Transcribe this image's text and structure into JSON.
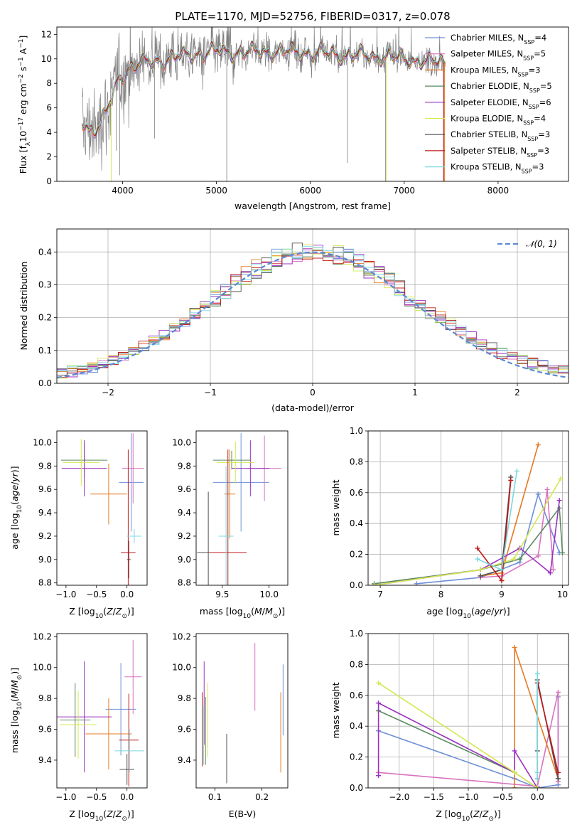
{
  "title": "PLATE=1170, MJD=52756, FIBERID=0317, z=0.078",
  "colors": {
    "Chabrier MILES": "#6c8fd8",
    "Salpeter MILES": "#d872c0",
    "Kroupa MILES": "#e87820",
    "Chabrier ELODIE": "#5a8a60",
    "Salpeter ELODIE": "#9b30c0",
    "Kroupa ELODIE": "#d4e850",
    "Chabrier STELIB": "#505050",
    "Salpeter STELIB": "#c01818",
    "Kroupa STELIB": "#7ad8e0",
    "data": "#808080"
  },
  "chart_data": [
    {
      "id": "spectrum",
      "type": "line",
      "xlabel": "wavelength [Angstrom, rest frame]",
      "ylabel": "Flux [f_λ 10^-17 erg cm^-2 s^-1 A^-1]",
      "xlim": [
        3300,
        8750
      ],
      "ylim": [
        0,
        12.6
      ],
      "xticks": [
        4000,
        5000,
        6000,
        7000,
        8000
      ],
      "yticks": [
        0,
        2,
        4,
        6,
        8,
        10,
        12
      ],
      "legend_position": "right",
      "legend": [
        {
          "model": "Chabrier MILES",
          "label": "Chabrier MILES, N",
          "sub": "SSP",
          "suffix": "=4"
        },
        {
          "model": "Salpeter MILES",
          "label": "Salpeter MILES, N",
          "sub": "SSP",
          "suffix": "=5"
        },
        {
          "model": "Kroupa MILES",
          "label": "Kroupa MILES, N",
          "sub": "SSP",
          "suffix": "=3"
        },
        {
          "model": "Chabrier ELODIE",
          "label": "Chabrier ELODIE, N",
          "sub": "SSP",
          "suffix": "=5"
        },
        {
          "model": "Salpeter ELODIE",
          "label": "Salpeter ELODIE, N",
          "sub": "SSP",
          "suffix": "=6"
        },
        {
          "model": "Kroupa ELODIE",
          "label": "Kroupa ELODIE, N",
          "sub": "SSP",
          "suffix": "=4"
        },
        {
          "model": "Chabrier STELIB",
          "label": "Chabrier STELIB, N",
          "sub": "SSP",
          "suffix": "=3"
        },
        {
          "model": "Salpeter STELIB",
          "label": "Salpeter STELIB, N",
          "sub": "SSP",
          "suffix": "=3"
        },
        {
          "model": "Kroupa STELIB",
          "label": "Kroupa STELIB, N",
          "sub": "SSP",
          "suffix": "=3"
        }
      ],
      "continuum": [
        [
          3570,
          5.0
        ],
        [
          3650,
          4.2
        ],
        [
          3750,
          4.5
        ],
        [
          3850,
          6.0
        ],
        [
          3950,
          8.2
        ],
        [
          4050,
          9.2
        ],
        [
          4200,
          9.6
        ],
        [
          4400,
          9.9
        ],
        [
          4700,
          10.3
        ],
        [
          5000,
          10.6
        ],
        [
          5300,
          10.5
        ],
        [
          5600,
          10.6
        ],
        [
          6000,
          10.5
        ],
        [
          6400,
          10.3
        ],
        [
          6800,
          10.2
        ],
        [
          7200,
          9.8
        ],
        [
          7440,
          9.7
        ]
      ],
      "absorption_lines": [
        [
          3934,
          2.5
        ],
        [
          3969,
          0.5
        ],
        [
          4340,
          3.5
        ],
        [
          5110,
          0.0
        ],
        [
          6396,
          1.5
        ],
        [
          6800,
          0.0
        ],
        [
          7420,
          0.0
        ]
      ]
    },
    {
      "id": "residuals",
      "type": "histogram",
      "xlabel": "(data-model)/error",
      "ylabel": "Normed distribution",
      "xlim": [
        -2.5,
        2.5
      ],
      "ylim": [
        0,
        0.47
      ],
      "xticks": [
        -2,
        -1,
        0,
        1,
        2
      ],
      "yticks": [
        0.0,
        0.1,
        0.2,
        0.3,
        0.4
      ],
      "bin_width": 0.1,
      "grid": true,
      "legend_position": "top-right",
      "reference_label": "𝒩(0, 1)"
    },
    {
      "id": "age-vs-Z",
      "type": "scatter",
      "xlabel": "Z [log10(Z/Z⊙)]",
      "ylabel": "age [log10(age/yr)]",
      "xlim": [
        -1.15,
        0.33
      ],
      "ylim": [
        8.78,
        10.1
      ],
      "xticks": [
        -1.0,
        -0.5,
        0.0
      ],
      "yticks": [
        8.8,
        9.0,
        9.2,
        9.4,
        9.6,
        9.8,
        10.0
      ],
      "points": [
        {
          "model": "Chabrier MILES",
          "x": 0.07,
          "y": 9.66,
          "xerr": 0.2,
          "yerr": 0.42
        },
        {
          "model": "Salpeter MILES",
          "x": 0.1,
          "y": 9.78,
          "xerr": 0.18,
          "yerr": 0.3
        },
        {
          "model": "Kroupa MILES",
          "x": -0.3,
          "y": 9.56,
          "xerr": 0.3,
          "yerr": 0.26
        },
        {
          "model": "Chabrier ELODIE",
          "x": -0.7,
          "y": 9.85,
          "xerr": 0.38,
          "yerr": 0.15
        },
        {
          "model": "Salpeter ELODIE",
          "x": -0.7,
          "y": 9.78,
          "xerr": 0.37,
          "yerr": 0.24
        },
        {
          "model": "Kroupa ELODIE",
          "x": -0.75,
          "y": 9.83,
          "xerr": 0.3,
          "yerr": 0.2
        },
        {
          "model": "Chabrier STELIB",
          "x": 0.03,
          "y": 9.0,
          "xerr": 0.03,
          "yerr": 0.16
        },
        {
          "model": "Salpeter STELIB",
          "x": 0.02,
          "y": 9.06,
          "xerr": 0.12,
          "yerr": 0.88
        },
        {
          "model": "Kroupa STELIB",
          "x": 0.12,
          "y": 9.2,
          "xerr": 0.12,
          "yerr": 0.06
        }
      ]
    },
    {
      "id": "age-vs-mass",
      "type": "scatter",
      "xlabel": "mass [log10(M/M⊙)]",
      "ylabel": "",
      "xlim": [
        9.22,
        10.2
      ],
      "ylim": [
        8.78,
        10.1
      ],
      "xticks": [
        9.5,
        10.0
      ],
      "yticks": [
        8.8,
        9.0,
        9.2,
        9.4,
        9.6,
        9.8,
        10.0
      ],
      "points": [
        {
          "model": "Chabrier MILES",
          "x": 9.7,
          "y": 9.66,
          "xerr": 0.3,
          "yerr": 0.42
        },
        {
          "model": "Salpeter MILES",
          "x": 9.95,
          "y": 9.78,
          "xerr": 0.18,
          "yerr": 0.28
        },
        {
          "model": "Kroupa MILES",
          "x": 9.58,
          "y": 9.56,
          "xerr": 0.06,
          "yerr": 0.38
        },
        {
          "model": "Chabrier ELODIE",
          "x": 9.6,
          "y": 9.85,
          "xerr": 0.2,
          "yerr": 0.08
        },
        {
          "model": "Salpeter ELODIE",
          "x": 9.8,
          "y": 9.78,
          "xerr": 0.2,
          "yerr": 0.24
        },
        {
          "model": "Kroupa ELODIE",
          "x": 9.64,
          "y": 9.83,
          "xerr": 0.2,
          "yerr": 0.18
        },
        {
          "model": "Chabrier STELIB",
          "x": 9.35,
          "y": 9.06,
          "xerr": 0.12,
          "yerr": 0.52
        },
        {
          "model": "Salpeter STELIB",
          "x": 9.56,
          "y": 9.06,
          "xerr": 0.2,
          "yerr": 0.88
        },
        {
          "model": "Kroupa STELIB",
          "x": 9.54,
          "y": 9.2,
          "xerr": 0.08,
          "yerr": 0.6
        }
      ]
    },
    {
      "id": "weight-vs-age",
      "type": "line",
      "xlabel": "age [log10(age/yr)]",
      "ylabel": "mass weight",
      "xlim": [
        6.8,
        10.1
      ],
      "ylim": [
        0,
        1.0
      ],
      "xticks": [
        7,
        8,
        9,
        10
      ],
      "yticks": [
        0.0,
        0.2,
        0.4,
        0.6,
        0.8,
        1.0
      ],
      "grid": true,
      "series": [
        {
          "model": "Chabrier MILES",
          "x": [
            7.6,
            8.65,
            9.3,
            9.6,
            9.95
          ],
          "y": [
            0.01,
            0.05,
            0.15,
            0.59,
            0.21
          ]
        },
        {
          "model": "Salpeter MILES",
          "x": [
            8.65,
            9.0,
            9.6,
            9.75,
            9.85
          ],
          "y": [
            0.05,
            0.06,
            0.19,
            0.62,
            0.1
          ]
        },
        {
          "model": "Kroupa MILES",
          "x": [
            8.65,
            9.0,
            9.6
          ],
          "y": [
            0.06,
            0.08,
            0.91
          ]
        },
        {
          "model": "Chabrier ELODIE",
          "x": [
            6.9,
            8.65,
            9.3,
            9.95,
            10.0
          ],
          "y": [
            0.01,
            0.1,
            0.17,
            0.5,
            0.21
          ]
        },
        {
          "model": "Salpeter ELODIE",
          "x": [
            6.9,
            8.65,
            9.3,
            9.8,
            9.95
          ],
          "y": [
            0.0,
            0.1,
            0.24,
            0.08,
            0.55
          ]
        },
        {
          "model": "Kroupa ELODIE",
          "x": [
            6.9,
            8.65,
            9.2,
            9.97
          ],
          "y": [
            0.0,
            0.1,
            0.17,
            0.69
          ]
        },
        {
          "model": "Chabrier STELIB",
          "x": [
            8.65,
            9.0,
            9.15
          ],
          "y": [
            0.06,
            0.1,
            0.7
          ]
        },
        {
          "model": "Salpeter STELIB",
          "x": [
            8.6,
            9.0,
            9.15
          ],
          "y": [
            0.24,
            0.03,
            0.68
          ]
        },
        {
          "model": "Kroupa STELIB",
          "x": [
            8.6,
            9.0,
            9.25
          ],
          "y": [
            0.17,
            0.1,
            0.74
          ]
        }
      ]
    },
    {
      "id": "mass-vs-Z",
      "type": "scatter",
      "xlabel": "Z [log10(Z/Z⊙)]",
      "ylabel": "mass [log10(M/M⊙)]",
      "xlim": [
        -1.15,
        0.33
      ],
      "ylim": [
        9.22,
        10.22
      ],
      "xticks": [
        -1.0,
        -0.5,
        0.0
      ],
      "yticks": [
        9.4,
        9.6,
        9.8,
        10.0,
        10.2
      ],
      "points": [
        {
          "model": "Chabrier MILES",
          "x": -0.1,
          "y": 9.73,
          "xerr": 0.25,
          "yerr": 0.3
        },
        {
          "model": "Salpeter MILES",
          "x": 0.1,
          "y": 9.94,
          "xerr": 0.14,
          "yerr": 0.24
        },
        {
          "model": "Kroupa MILES",
          "x": -0.3,
          "y": 9.57,
          "xerr": 0.38,
          "yerr": 0.23
        },
        {
          "model": "Chabrier ELODIE",
          "x": -0.85,
          "y": 9.66,
          "xerr": 0.25,
          "yerr": 0.24
        },
        {
          "model": "Salpeter ELODIE",
          "x": -0.7,
          "y": 9.68,
          "xerr": 0.45,
          "yerr": 0.36
        },
        {
          "model": "Kroupa ELODIE",
          "x": -0.8,
          "y": 9.63,
          "xerr": 0.3,
          "yerr": 0.22
        },
        {
          "model": "Chabrier STELIB",
          "x": 0.0,
          "y": 9.34,
          "xerr": 0.12,
          "yerr": 0.1
        },
        {
          "model": "Salpeter STELIB",
          "x": 0.03,
          "y": 9.53,
          "xerr": 0.16,
          "yerr": 0.3
        },
        {
          "model": "Kroupa STELIB",
          "x": 0.04,
          "y": 9.46,
          "xerr": 0.24,
          "yerr": 0.14
        }
      ]
    },
    {
      "id": "mass-vs-EBV",
      "type": "scatter",
      "xlabel": "E(B-V)",
      "ylabel": "",
      "xlim": [
        0.06,
        0.255
      ],
      "ylim": [
        9.22,
        10.22
      ],
      "xticks": [
        0.1,
        0.2
      ],
      "yticks": [
        9.4,
        9.6,
        9.8,
        10.0,
        10.2
      ],
      "points": [
        {
          "model": "Chabrier MILES",
          "x": 0.245,
          "y": 9.79,
          "yerr": 0.23
        },
        {
          "model": "Salpeter MILES",
          "x": 0.185,
          "y": 9.94,
          "yerr": 0.22
        },
        {
          "model": "Kroupa MILES",
          "x": 0.24,
          "y": 9.58,
          "yerr": 0.26
        },
        {
          "model": "Chabrier ELODIE",
          "x": 0.08,
          "y": 9.59,
          "yerr": 0.22
        },
        {
          "model": "Salpeter ELODIE",
          "x": 0.077,
          "y": 9.77,
          "yerr": 0.27
        },
        {
          "model": "Kroupa ELODIE",
          "x": 0.085,
          "y": 9.66,
          "yerr": 0.24
        },
        {
          "model": "Chabrier STELIB",
          "x": 0.125,
          "y": 9.41,
          "yerr": 0.16
        },
        {
          "model": "Salpeter STELIB",
          "x": 0.073,
          "y": 9.6,
          "yerr": 0.24
        },
        {
          "model": "Kroupa STELIB",
          "x": 0.076,
          "y": 9.56,
          "yerr": 0.19
        }
      ]
    },
    {
      "id": "weight-vs-Z",
      "type": "line",
      "xlabel": "Z [log10(Z/Z⊙)]",
      "ylabel": "mass weight",
      "xlim": [
        -2.45,
        0.45
      ],
      "ylim": [
        0,
        1.0
      ],
      "xticks": [
        -2.0,
        -1.5,
        -1.0,
        -0.5,
        0.0
      ],
      "yticks": [
        0.0,
        0.2,
        0.4,
        0.6,
        0.8,
        1.0
      ],
      "grid": true,
      "series": [
        {
          "model": "Chabrier MILES",
          "x": [
            -2.3,
            -0.33,
            0.0,
            0.3,
            0.3
          ],
          "y": [
            0.37,
            0.06,
            0.0,
            0.02,
            0.59
          ]
        },
        {
          "model": "Salpeter MILES",
          "x": [
            -2.3,
            0.0,
            0.3,
            0.3
          ],
          "y": [
            0.1,
            0.01,
            0.62,
            0.04
          ]
        },
        {
          "model": "Kroupa MILES",
          "x": [
            -0.33,
            -0.33,
            0.3
          ],
          "y": [
            0.0,
            0.91,
            0.06
          ]
        },
        {
          "model": "Chabrier ELODIE",
          "x": [
            -2.3,
            -0.33,
            0.0
          ],
          "y": [
            0.5,
            0.1,
            0.0
          ]
        },
        {
          "model": "Salpeter ELODIE",
          "x": [
            -2.3,
            -2.3,
            -0.33,
            -0.33,
            0.0
          ],
          "y": [
            0.08,
            0.55,
            0.1,
            0.24,
            0.0
          ]
        },
        {
          "model": "Kroupa ELODIE",
          "x": [
            -2.3,
            -0.33,
            0.0
          ],
          "y": [
            0.68,
            0.1,
            0.0
          ]
        },
        {
          "model": "Chabrier STELIB",
          "x": [
            0.0,
            0.0,
            0.3
          ],
          "y": [
            0.24,
            0.7,
            0.06
          ]
        },
        {
          "model": "Salpeter STELIB",
          "x": [
            0.0,
            0.0,
            0.3
          ],
          "y": [
            0.06,
            0.68,
            0.1
          ]
        },
        {
          "model": "Kroupa STELIB",
          "x": [
            0.0,
            0.0,
            0.0
          ],
          "y": [
            0.74,
            0.06,
            0.1
          ]
        }
      ]
    }
  ]
}
